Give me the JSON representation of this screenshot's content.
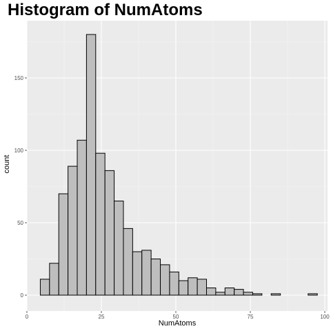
{
  "chart_data": {
    "type": "bar",
    "title": "Histogram of NumAtoms",
    "xlabel": "NumAtoms",
    "ylabel": "count",
    "xlim": [
      0,
      100
    ],
    "ylim": [
      0,
      180
    ],
    "x_ticks": [
      0,
      25,
      50,
      75,
      100
    ],
    "y_ticks": [
      0,
      50,
      100,
      150
    ],
    "bin_width": 3.1,
    "bin_start": 4.5,
    "counts": [
      11,
      22,
      70,
      89,
      107,
      180,
      98,
      86,
      65,
      46,
      30,
      31,
      25,
      21,
      16,
      10,
      12,
      11,
      5,
      2,
      5,
      4,
      2,
      1,
      0,
      1,
      0,
      0,
      0,
      1
    ],
    "bar_fill": "#bebebe",
    "bar_stroke": "#000000",
    "panel_bg": "#ebebeb",
    "grid": true
  }
}
